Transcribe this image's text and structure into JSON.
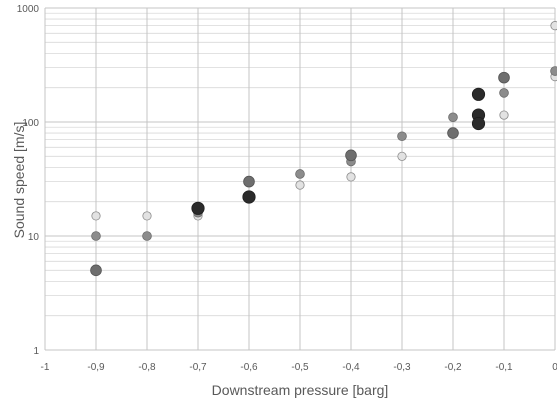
{
  "chart_data": {
    "type": "scatter",
    "xlabel": "Downstream pressure [barg]",
    "ylabel": "Sound speed  [m/s]",
    "x_scale": "linear",
    "y_scale": "log",
    "xlim": [
      -1,
      0
    ],
    "ylim": [
      1,
      1000
    ],
    "grid": "on",
    "x_ticks": [
      {
        "value": -1,
        "label": "-1"
      },
      {
        "value": -0.9,
        "label": "-0,9"
      },
      {
        "value": -0.8,
        "label": "-0,8"
      },
      {
        "value": -0.7,
        "label": "-0,7"
      },
      {
        "value": -0.6,
        "label": "-0,6"
      },
      {
        "value": -0.5,
        "label": "-0,5"
      },
      {
        "value": -0.4,
        "label": "-0,4"
      },
      {
        "value": -0.3,
        "label": "-0,3"
      },
      {
        "value": -0.2,
        "label": "-0,2"
      },
      {
        "value": -0.1,
        "label": "-0,1"
      },
      {
        "value": 0,
        "label": "0"
      }
    ],
    "y_ticks": [
      {
        "value": 1,
        "label": "1"
      },
      {
        "value": 10,
        "label": "10"
      },
      {
        "value": 100,
        "label": "100"
      },
      {
        "value": 1000,
        "label": "1000"
      }
    ],
    "series": [
      {
        "color": "#e2e2e2",
        "points": [
          {
            "x": -0.9,
            "y": 15
          },
          {
            "x": -0.8,
            "y": 15
          },
          {
            "x": -0.7,
            "y": 15
          },
          {
            "x": -0.5,
            "y": 28
          },
          {
            "x": -0.4,
            "y": 33
          },
          {
            "x": -0.3,
            "y": 50
          },
          {
            "x": -0.1,
            "y": 115
          },
          {
            "x": 0,
            "y": 700
          },
          {
            "x": 0,
            "y": 250
          }
        ]
      },
      {
        "color": "#8c8c8c",
        "points": [
          {
            "x": -0.9,
            "y": 10
          },
          {
            "x": -0.8,
            "y": 10
          },
          {
            "x": -0.7,
            "y": 16
          },
          {
            "x": -0.5,
            "y": 35
          },
          {
            "x": -0.4,
            "y": 45
          },
          {
            "x": -0.3,
            "y": 75
          },
          {
            "x": -0.2,
            "y": 110
          },
          {
            "x": -0.1,
            "y": 180
          },
          {
            "x": 0,
            "y": 280
          }
        ]
      },
      {
        "color": "#6e6e6e",
        "points": [
          {
            "x": -0.9,
            "y": 5
          },
          {
            "x": -0.6,
            "y": 30
          },
          {
            "x": -0.4,
            "y": 51
          },
          {
            "x": -0.2,
            "y": 80
          },
          {
            "x": -0.1,
            "y": 245
          }
        ]
      },
      {
        "color": "#2b2b2b",
        "points": [
          {
            "x": -0.7,
            "y": 17.5
          },
          {
            "x": -0.6,
            "y": 22
          },
          {
            "x": -0.15,
            "y": 175
          },
          {
            "x": -0.15,
            "y": 115
          },
          {
            "x": -0.15,
            "y": 97
          }
        ]
      }
    ]
  }
}
